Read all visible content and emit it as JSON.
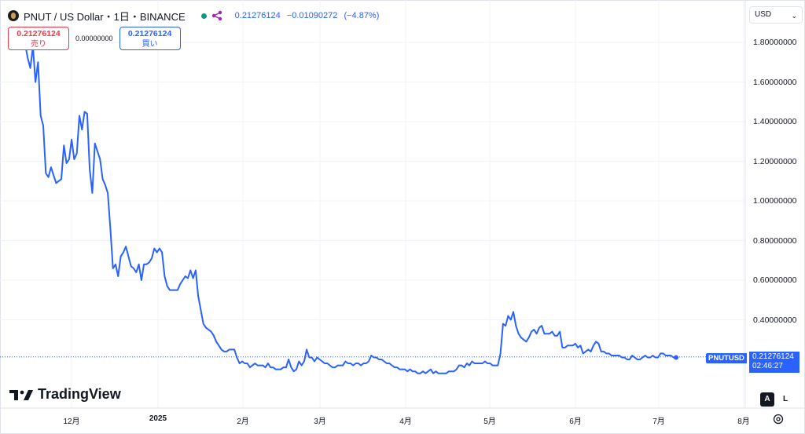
{
  "header": {
    "title": "PNUT / US Dollar・1日・BINANCE",
    "quote_last": "0.21276124",
    "quote_change": "−0.01090272",
    "quote_change_pct": "(−4.87%)",
    "sell_price": "0.21276124",
    "sell_label": "売り",
    "spread": "0.00000000",
    "buy_price": "0.21276124",
    "buy_label": "買い"
  },
  "axis": {
    "currency": "USD",
    "y_ticks": [
      "1.80000000",
      "1.60000000",
      "1.40000000",
      "1.20000000",
      "1.00000000",
      "0.80000000",
      "0.60000000",
      "0.40000000"
    ],
    "x_ticks": [
      {
        "label": "12月",
        "bold": false
      },
      {
        "label": "2025",
        "bold": true
      },
      {
        "label": "2月",
        "bold": false
      },
      {
        "label": "3月",
        "bold": false
      },
      {
        "label": "4月",
        "bold": false
      },
      {
        "label": "5月",
        "bold": false
      },
      {
        "label": "6月",
        "bold": false
      },
      {
        "label": "7月",
        "bold": false
      },
      {
        "label": "8月",
        "bold": false
      }
    ]
  },
  "last_price": {
    "symbol": "PNUTUSD",
    "value": "0.21276124",
    "countdown": "02:46:27"
  },
  "branding": {
    "name": "TradingView"
  },
  "controls": {
    "auto_label": "A",
    "log_label": "L"
  },
  "colors": {
    "line": "#2962ff",
    "sell": "#f23645",
    "buy": "#2962ff",
    "live_dot": "#089981"
  },
  "chart_data": {
    "type": "line",
    "symbol": "PNUTUSD",
    "series": [
      {
        "values": [
          1.79,
          1.72,
          1.67,
          1.78,
          1.6,
          1.7,
          1.43,
          1.38,
          1.14,
          1.12,
          1.17,
          1.13,
          1.09,
          1.1,
          1.11,
          1.28,
          1.19,
          1.21,
          1.31,
          1.21,
          1.24,
          1.43,
          1.36,
          1.45,
          1.44,
          1.16,
          1.04,
          1.29,
          1.25,
          1.21,
          1.11,
          1.08,
          1.04,
          0.86,
          0.66,
          0.68,
          0.62,
          0.72,
          0.74,
          0.77,
          0.72,
          0.67,
          0.66,
          0.64,
          0.68,
          0.6,
          0.68,
          0.68,
          0.69,
          0.71,
          0.76,
          0.74,
          0.76,
          0.74,
          0.62,
          0.57,
          0.55,
          0.55,
          0.55,
          0.55,
          0.58,
          0.6,
          0.62,
          0.61,
          0.65,
          0.61,
          0.65,
          0.52,
          0.45,
          0.38,
          0.36,
          0.35,
          0.34,
          0.32,
          0.29,
          0.27,
          0.25,
          0.24,
          0.24,
          0.25,
          0.25,
          0.25,
          0.21,
          0.18,
          0.19,
          0.18,
          0.18,
          0.16,
          0.17,
          0.18,
          0.17,
          0.17,
          0.17,
          0.16,
          0.18,
          0.16,
          0.16,
          0.15,
          0.15,
          0.15,
          0.16,
          0.16,
          0.2,
          0.16,
          0.14,
          0.15,
          0.19,
          0.17,
          0.19,
          0.25,
          0.21,
          0.21,
          0.19,
          0.21,
          0.2,
          0.19,
          0.18,
          0.18,
          0.17,
          0.16,
          0.16,
          0.17,
          0.17,
          0.17,
          0.19,
          0.18,
          0.18,
          0.17,
          0.18,
          0.18,
          0.17,
          0.18,
          0.18,
          0.19,
          0.22,
          0.21,
          0.21,
          0.2,
          0.2,
          0.19,
          0.18,
          0.18,
          0.17,
          0.16,
          0.16,
          0.15,
          0.15,
          0.15,
          0.14,
          0.15,
          0.14,
          0.14,
          0.13,
          0.13,
          0.14,
          0.13,
          0.14,
          0.15,
          0.13,
          0.14,
          0.13,
          0.13,
          0.13,
          0.13,
          0.14,
          0.14,
          0.14,
          0.15,
          0.17,
          0.17,
          0.16,
          0.18,
          0.17,
          0.19,
          0.18,
          0.18,
          0.18,
          0.18,
          0.19,
          0.18,
          0.18,
          0.17,
          0.17,
          0.17,
          0.23,
          0.38,
          0.37,
          0.42,
          0.4,
          0.44,
          0.37,
          0.33,
          0.31,
          0.3,
          0.29,
          0.31,
          0.34,
          0.35,
          0.33,
          0.36,
          0.37,
          0.33,
          0.33,
          0.33,
          0.34,
          0.32,
          0.32,
          0.34,
          0.26,
          0.26,
          0.27,
          0.27,
          0.27,
          0.28,
          0.26,
          0.27,
          0.23,
          0.24,
          0.25,
          0.24,
          0.27,
          0.29,
          0.28,
          0.24,
          0.24,
          0.23,
          0.23,
          0.22,
          0.22,
          0.22,
          0.22,
          0.21,
          0.21,
          0.2,
          0.2,
          0.22,
          0.21,
          0.2,
          0.2,
          0.21,
          0.22,
          0.21,
          0.21,
          0.22,
          0.21,
          0.21,
          0.23,
          0.23,
          0.22,
          0.22,
          0.22,
          0.21,
          0.21
        ],
        "ylim": [
          0.0,
          1.8
        ]
      }
    ],
    "x_range": [
      "2024-11-14",
      "2025-07-20"
    ],
    "ylim": [
      0.0,
      1.8
    ],
    "y_ticks": [
      0.4,
      0.6,
      0.8,
      1.0,
      1.2,
      1.4,
      1.6,
      1.8
    ],
    "grid": true
  }
}
